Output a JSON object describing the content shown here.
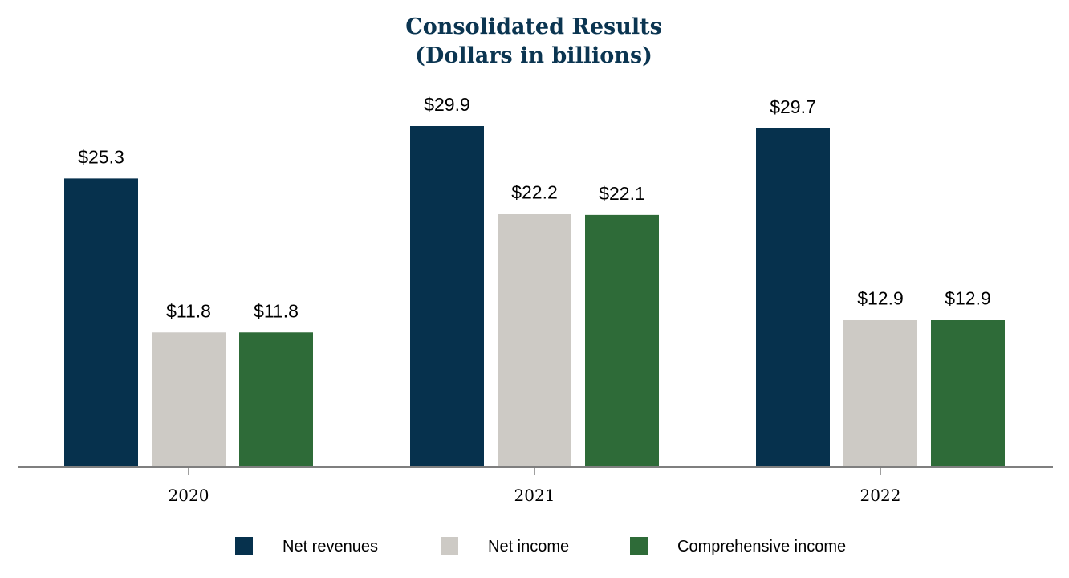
{
  "chart_data": {
    "type": "bar",
    "title": "Consolidated Results",
    "subtitle": "(Dollars in billions)",
    "categories": [
      "2020",
      "2021",
      "2022"
    ],
    "series": [
      {
        "name": "Net revenues",
        "color": "#06314d",
        "values": [
          25.3,
          29.9,
          29.7
        ],
        "labels": [
          "$25.3",
          "$29.9",
          "$29.7"
        ]
      },
      {
        "name": "Net income",
        "color": "#cdcac5",
        "values": [
          11.8,
          22.2,
          12.9
        ],
        "labels": [
          "$11.8",
          "$22.2",
          "$12.9"
        ]
      },
      {
        "name": "Comprehensive income",
        "color": "#2e6b38",
        "values": [
          11.8,
          22.1,
          12.9
        ],
        "labels": [
          "$11.8",
          "$22.1",
          "$12.9"
        ]
      }
    ],
    "ylim": [
      0,
      30
    ],
    "xlabel": "",
    "ylabel": "",
    "grid": false,
    "legend_position": "bottom-center",
    "title_color": "#0b3551",
    "axis_color": "#7f7f7f"
  }
}
